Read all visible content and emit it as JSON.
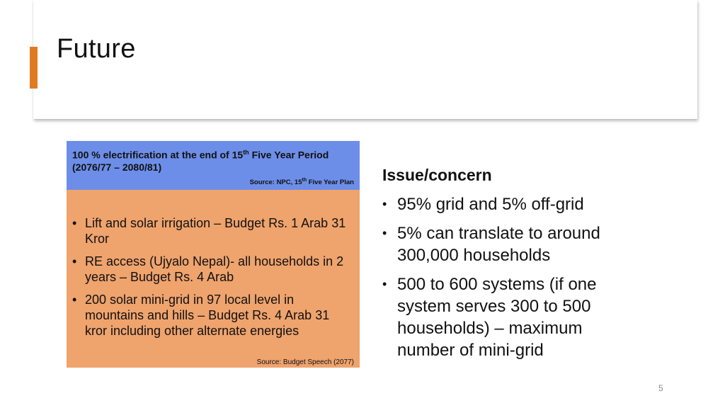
{
  "slide": {
    "title": "Future",
    "page_number": "5"
  },
  "blue_box": {
    "heading_part1": "100 % electrification at the end of 15",
    "heading_sup": "th",
    "heading_part2": " Five Year Period (2076/77 – 2080/81)",
    "source_part1": "Source: NPC, 15",
    "source_sup": "th",
    "source_part2": " Five Year Plan"
  },
  "orange_box": {
    "bullets": [
      "Lift and solar irrigation – Budget Rs. 1 Arab 31 Kror",
      "RE access (Ujyalo Nepal)- all households in 2 years – Budget Rs. 4 Arab",
      "200 solar mini-grid in 97 local level in mountains and hills – Budget Rs. 4 Arab 31 kror including other alternate energies"
    ],
    "source": "Source: Budget Speech (2077)"
  },
  "issue": {
    "heading": "Issue/concern",
    "bullets": [
      "95% grid and 5% off-grid",
      "5% can translate to around 300,000 households",
      "500 to 600 systems (if one system serves 300 to 500 households) – maximum number of mini-grid"
    ]
  },
  "colors": {
    "accent": "#e07b24",
    "blue_box": "#6d8ee8",
    "orange_box": "#efa36d"
  }
}
